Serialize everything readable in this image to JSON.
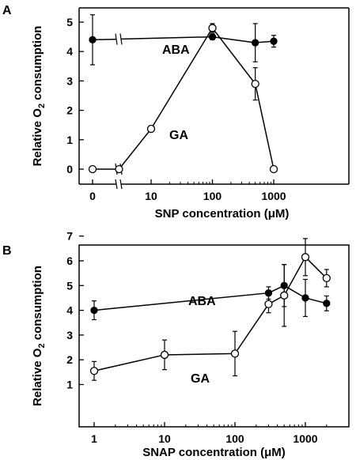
{
  "chart_data": [
    {
      "panel": "A",
      "type": "line",
      "xlabel": "SNP concentration (μM)",
      "ylabel": "Relative O₂ consumption",
      "x_scale": "log with axis break (0 plotted before break)",
      "xlim": [
        0,
        1000
      ],
      "ylim": [
        -0.5,
        5.3
      ],
      "x_ticks": [
        "0",
        "10",
        "100",
        "1000"
      ],
      "y_ticks": [
        "0",
        "1",
        "2",
        "3",
        "4",
        "5"
      ],
      "grid": false,
      "legend": "none (series labeled inline)",
      "series": [
        {
          "name": "ABA",
          "marker": "filled-circle",
          "points": [
            {
              "x": 0,
              "y": 4.4,
              "err": 0.85
            },
            {
              "x": 100,
              "y": 4.5,
              "err": 0.1
            },
            {
              "x": 500,
              "y": 4.3,
              "err": 0.65
            },
            {
              "x": 1000,
              "y": 4.35,
              "err": 0.2
            }
          ]
        },
        {
          "name": "GA",
          "marker": "open-circle",
          "points": [
            {
              "x": 0,
              "y": 0,
              "err": 0
            },
            {
              "x": 3,
              "y": 0,
              "err": 0
            },
            {
              "x": 10,
              "y": 1.37,
              "err": 0.1
            },
            {
              "x": 100,
              "y": 4.8,
              "err": 0.15
            },
            {
              "x": 500,
              "y": 2.9,
              "err": 0.55
            },
            {
              "x": 1000,
              "y": 0,
              "err": 0
            }
          ]
        }
      ]
    },
    {
      "panel": "B",
      "type": "line",
      "xlabel": "SNAP concentration (μM)",
      "ylabel": "Relative O₂ consumption",
      "x_scale": "log",
      "xlim": [
        0.7,
        3000
      ],
      "ylim": [
        0.6,
        7.0
      ],
      "x_ticks": [
        "1",
        "10",
        "100",
        "1000"
      ],
      "y_ticks": [
        "1",
        "2",
        "3",
        "4",
        "5",
        "6",
        "7"
      ],
      "grid": false,
      "legend": "none (series labeled inline)",
      "series": [
        {
          "name": "ABA",
          "marker": "filled-circle",
          "points": [
            {
              "x": 1,
              "y": 4.0,
              "err": 0.38
            },
            {
              "x": 300,
              "y": 4.7,
              "err": 0.25
            },
            {
              "x": 500,
              "y": 5.0,
              "err": 0.85
            },
            {
              "x": 1000,
              "y": 4.5,
              "err": 0.75
            },
            {
              "x": 2000,
              "y": 4.28,
              "err": 0.3
            }
          ]
        },
        {
          "name": "GA",
          "marker": "open-circle",
          "points": [
            {
              "x": 1,
              "y": 1.55,
              "err": 0.38
            },
            {
              "x": 10,
              "y": 2.2,
              "err": 0.6
            },
            {
              "x": 100,
              "y": 2.25,
              "err": 0.9
            },
            {
              "x": 300,
              "y": 4.25,
              "err": 0.35
            },
            {
              "x": 500,
              "y": 4.6,
              "err": 1.25
            },
            {
              "x": 1000,
              "y": 6.15,
              "err": 0.75
            },
            {
              "x": 2000,
              "y": 5.3,
              "err": 0.35
            }
          ]
        }
      ]
    }
  ]
}
